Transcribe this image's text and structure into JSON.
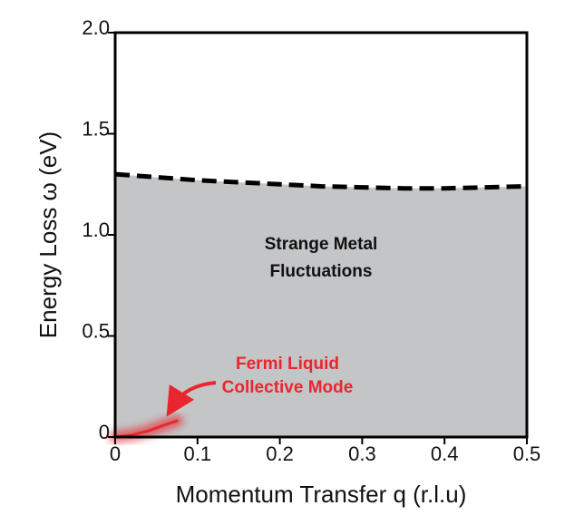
{
  "chart_data": {
    "type": "area",
    "x_label": "Momentum Transfer q (r.l.u)",
    "y_label": "Energy Loss ω (eV)",
    "xlim": [
      0,
      0.5
    ],
    "ylim": [
      0,
      2
    ],
    "xticks": [
      0,
      0.1,
      0.2,
      0.3,
      0.4,
      0.5
    ],
    "yticks": [
      0,
      0.5,
      {
        "value": 1,
        "label": "1.0"
      },
      1.5,
      {
        "value": 2,
        "label": "2.0"
      }
    ],
    "series": [
      {
        "color": "#c4c5c7",
        "line_style": "dashed",
        "x": [
          0,
          0.05,
          0.1,
          0.15,
          0.2,
          0.25,
          0.3,
          0.35,
          0.4,
          0.45,
          0.5
        ],
        "values": [
          1.3,
          1.285,
          1.27,
          1.26,
          1.25,
          1.24,
          1.235,
          1.23,
          1.23,
          1.235,
          1.24
        ]
      },
      {
        "color": "#e8262d",
        "x": [
          0,
          0.02,
          0.04,
          0.06,
          0.075
        ],
        "values": [
          0,
          0.01,
          0.03,
          0.06,
          0.08
        ]
      }
    ],
    "annotations": [
      {
        "lines": [
          "Strange Metal",
          "Fluctuations"
        ],
        "color": "#111111"
      },
      {
        "lines": [
          "Fermi Liquid",
          "Collective Mode"
        ],
        "color": "#e8262d"
      }
    ]
  }
}
